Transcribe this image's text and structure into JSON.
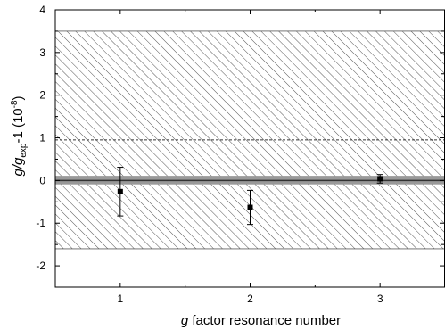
{
  "chart_data": {
    "type": "scatter",
    "xlabel": {
      "italic": "g",
      "rest": " factor resonance number"
    },
    "ylabel": {
      "prefix": "g/g",
      "subscript": "exp",
      "suffix": "-1 (10",
      "superscript": "-8",
      "close": ")"
    },
    "xlim": [
      0.5,
      3.5
    ],
    "ylim": [
      -2.5,
      4
    ],
    "x_ticks": [
      1,
      2,
      3
    ],
    "x_tick_labels": [
      "1",
      "2",
      "3"
    ],
    "y_ticks": [
      -2,
      -1,
      0,
      1,
      2,
      3,
      4
    ],
    "y_tick_labels": [
      "-2",
      "-1",
      "0",
      "1",
      "2",
      "3",
      "4"
    ],
    "grid": false,
    "points": [
      {
        "x": 1,
        "y": -0.26,
        "err_low": -0.83,
        "err_high": 0.31
      },
      {
        "x": 2,
        "y": -0.63,
        "err_low": -1.03,
        "err_high": -0.23
      },
      {
        "x": 3,
        "y": 0.04,
        "err_low": -0.06,
        "err_high": 0.14
      }
    ],
    "hatched_band": {
      "y_min": -1.6,
      "y_max": 3.5
    },
    "gray_band": {
      "y_min": -0.09,
      "y_max": 0.11
    },
    "center_line": 0.0,
    "dashed_line": 0.95,
    "colors": {
      "hatch": "#555555",
      "gray_band": "#999999",
      "center_line": "#333333",
      "marker": "#000000"
    }
  }
}
